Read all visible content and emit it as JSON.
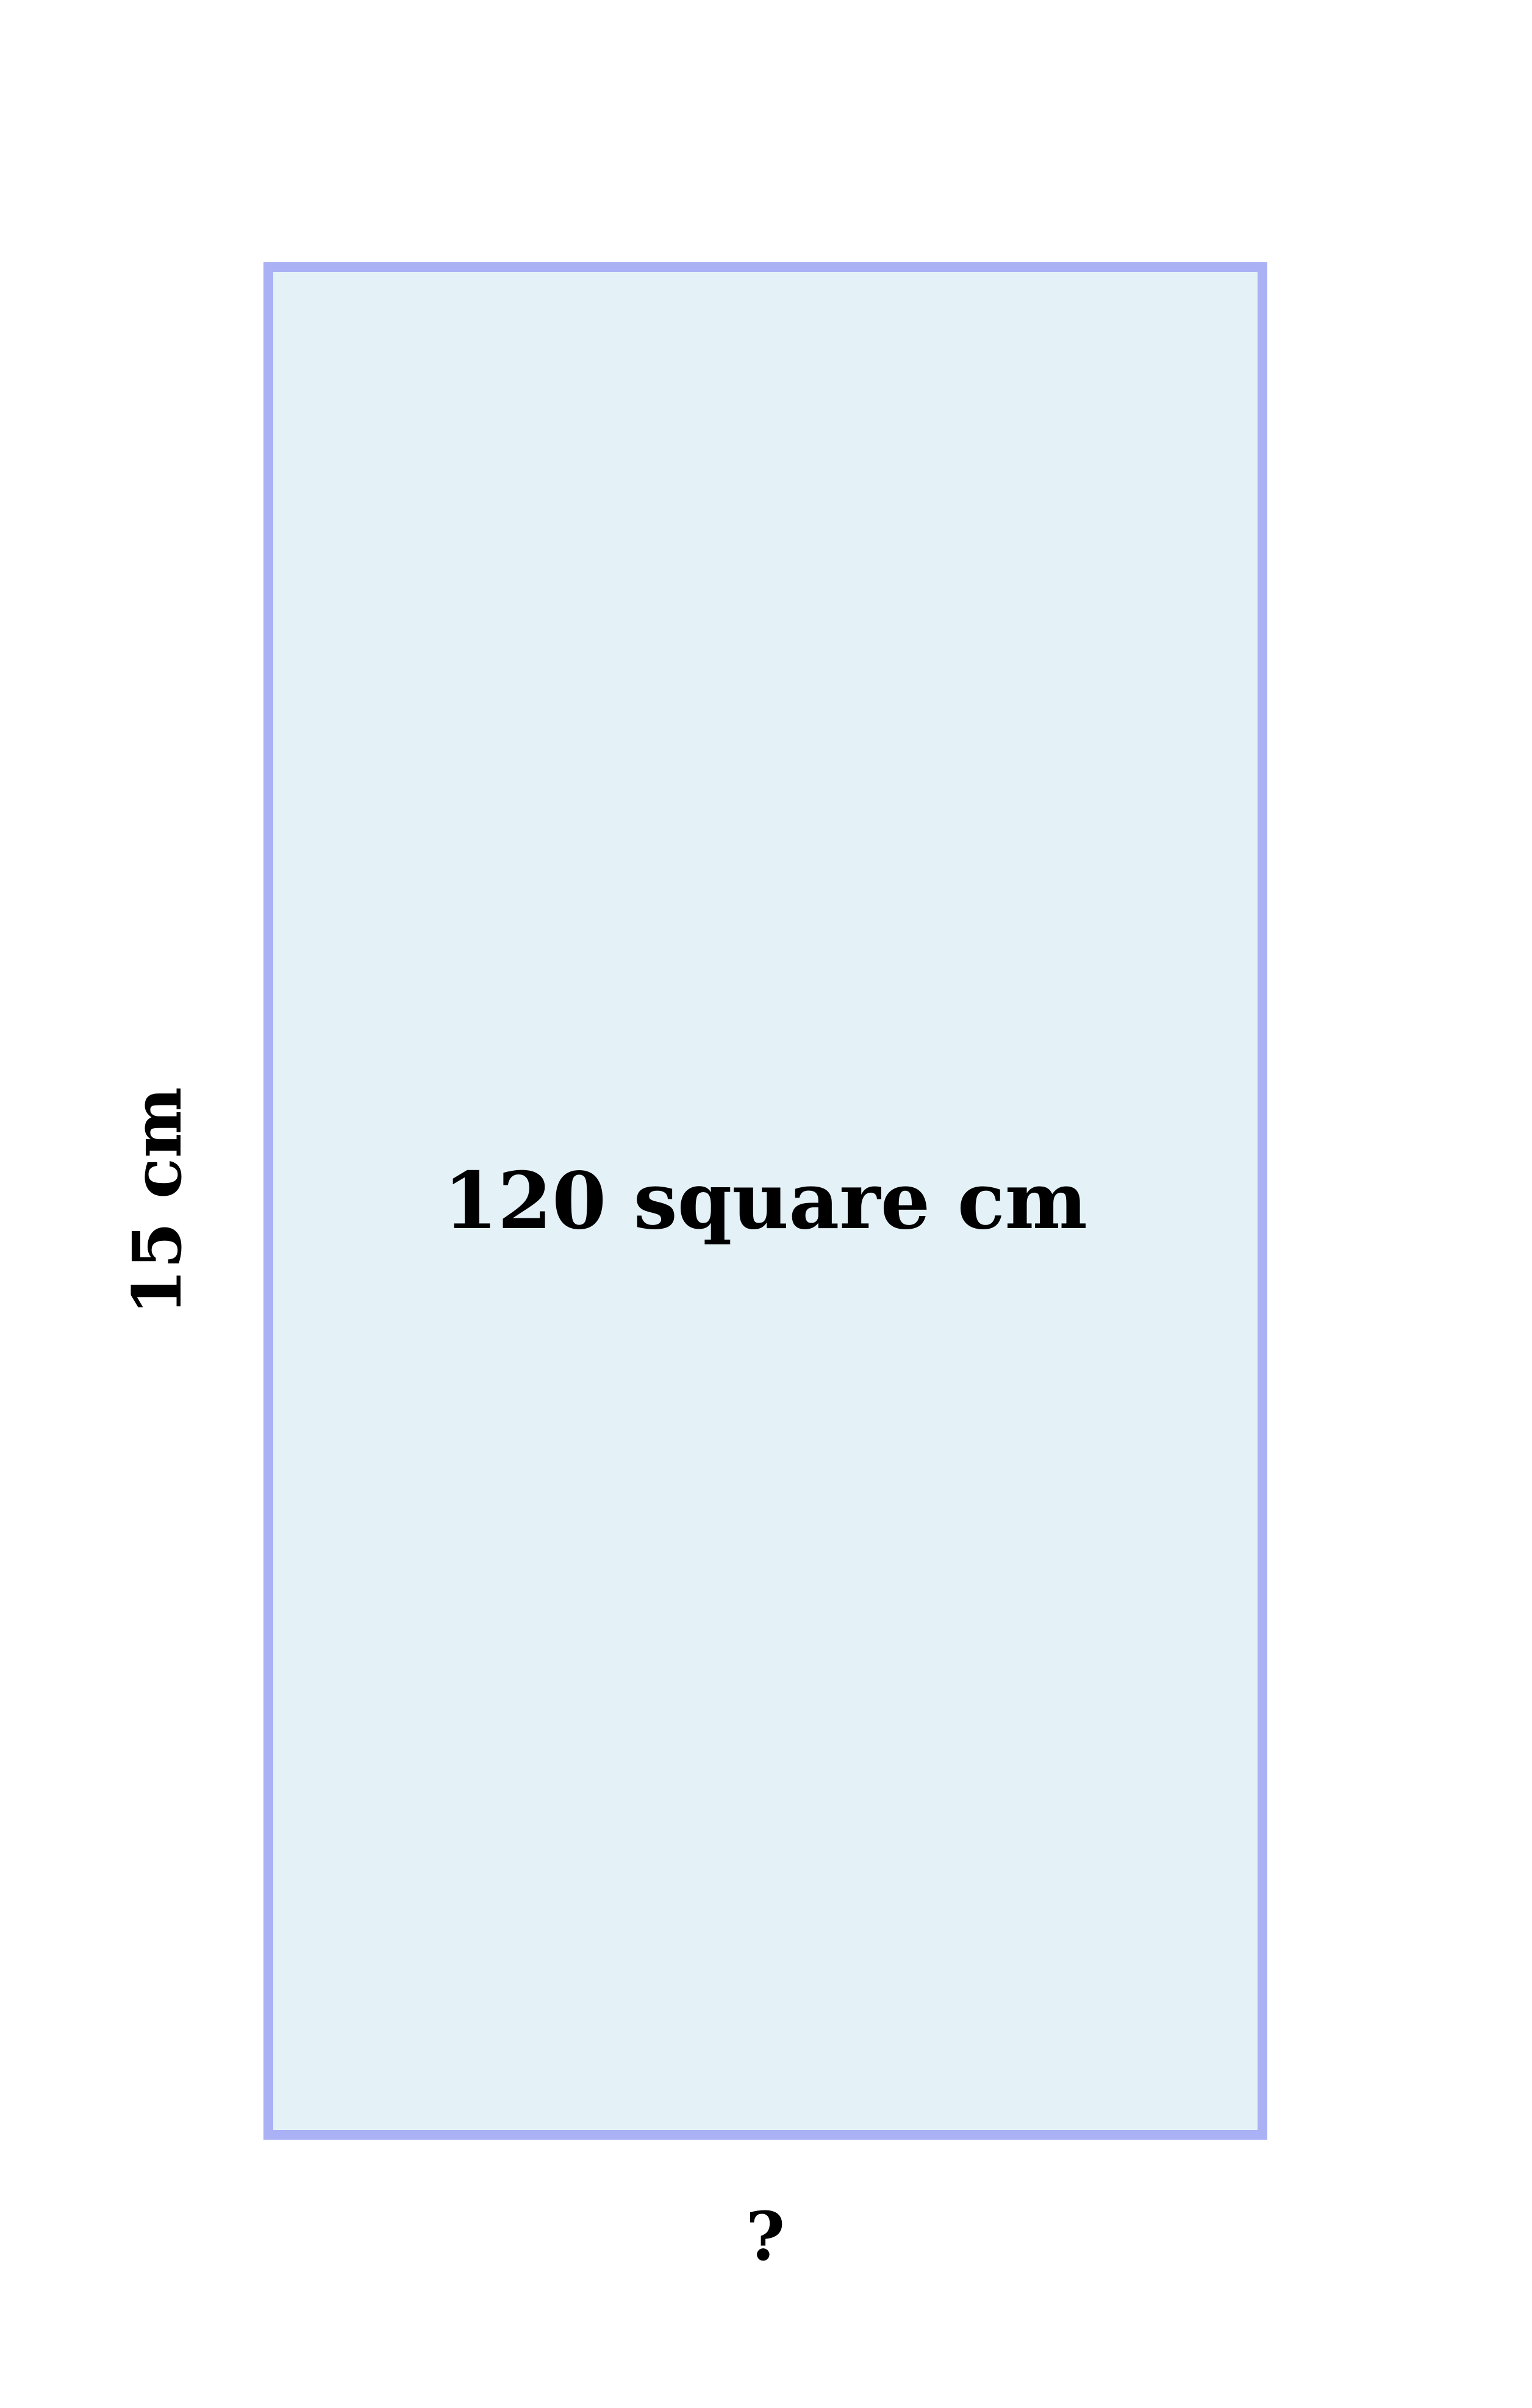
{
  "diagram": {
    "shape": "rectangle",
    "fill_color": "#e4f2f8",
    "stroke_color": "#aab2f5",
    "area_label": "120 square cm",
    "height_label": "15 cm",
    "width_label": "?"
  }
}
